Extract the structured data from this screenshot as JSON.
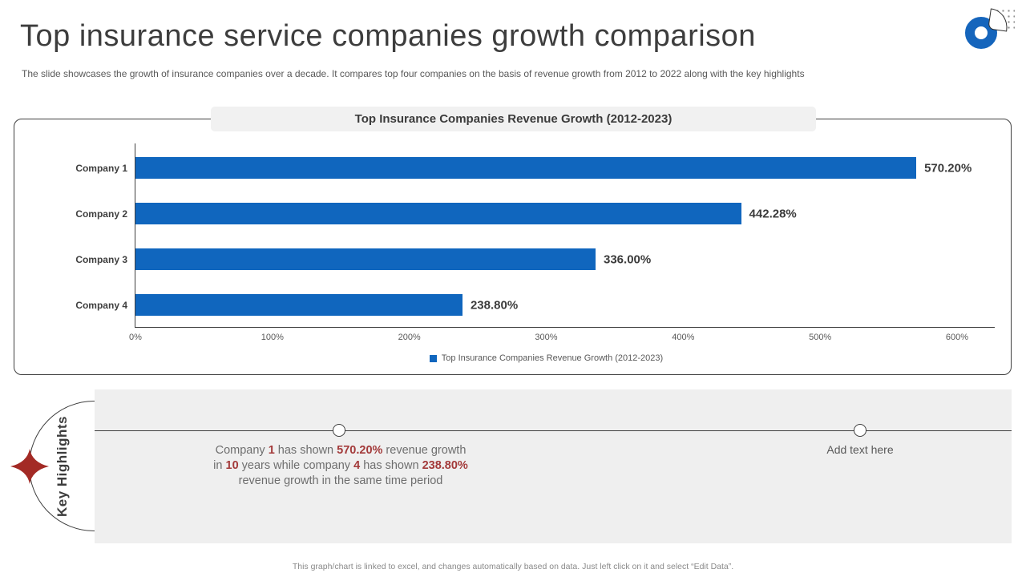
{
  "header": {
    "title": "Top insurance service companies growth comparison",
    "subtitle": "The slide showcases the growth of insurance companies over a decade. It compares top four companies on the basis of revenue growth from 2012 to 2022 along with the key highlights"
  },
  "icons": {
    "logo": "blue-ring-logo",
    "logo_dots": "dot-grid-decoration",
    "logo_fan": "fan-outline-decoration",
    "star": "four-point-star",
    "timeline_marker": "hollow-circle-marker"
  },
  "colors": {
    "bar_blue": "#1066BE",
    "accent_red": "#A33A3A",
    "star_red": "#A32A25",
    "panel_grey": "#EFEFEF",
    "title_grey_bar": "#F1F1F1",
    "dark_text": "#3D3D3D",
    "muted_text": "#595959"
  },
  "chart_data": {
    "type": "bar",
    "orientation": "horizontal",
    "title": "Top Insurance Companies Revenue Growth (2012-2023)",
    "categories": [
      "Company 1",
      "Company 2",
      "Company 3",
      "Company 4"
    ],
    "values": [
      570.2,
      442.28,
      336.0,
      238.8
    ],
    "value_labels": [
      "570.20%",
      "442.28%",
      "336.00%",
      "238.80%"
    ],
    "x_ticks": [
      "0%",
      "100%",
      "200%",
      "300%",
      "400%",
      "500%",
      "600%"
    ],
    "xlim": [
      0,
      600
    ],
    "grid": false,
    "legend": "Top Insurance Companies Revenue Growth (2012-2023)",
    "legend_position": "bottom-center",
    "bar_color": "#1066BE"
  },
  "highlights": {
    "section_label": "Key Highlights",
    "note_lines": [
      [
        {
          "text": "Company "
        },
        {
          "text": "1",
          "em": true
        },
        {
          "text": " has shown "
        },
        {
          "text": "570.20%",
          "em": true
        },
        {
          "text": " revenue growth"
        }
      ],
      [
        {
          "text": "in "
        },
        {
          "text": "10",
          "em": true
        },
        {
          "text": " years while company "
        },
        {
          "text": "4",
          "em": true
        },
        {
          "text": " has shown "
        },
        {
          "text": "238.80%",
          "em": true
        }
      ],
      [
        {
          "text": "revenue growth in the same time period"
        }
      ]
    ],
    "placeholder": "Add text here"
  },
  "footer": {
    "note": "This graph/chart is linked to excel, and changes automatically based on data. Just left click on it and select “Edit Data”."
  }
}
